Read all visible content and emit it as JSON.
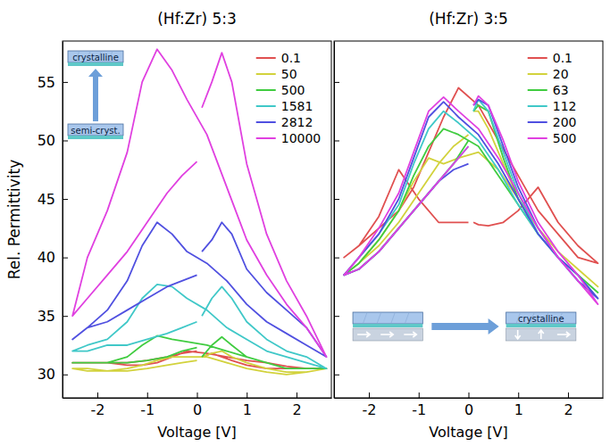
{
  "chart_data": [
    {
      "type": "line",
      "title": "(Hf:Zr) 5:3",
      "x_label": "Voltage [V]",
      "y_label": "Rel. Permittivity",
      "xlim": [
        -2.7,
        2.7
      ],
      "xticks": [
        -2,
        -1,
        0,
        1,
        2
      ],
      "ylim": [
        28,
        58.5
      ],
      "yticks": [
        30,
        35,
        40,
        45,
        50,
        55
      ],
      "legend": "upper right",
      "annotations": [
        "crystalline",
        "semi-cryst."
      ],
      "x": [
        0.1,
        0.3,
        0.5,
        0.7,
        1.0,
        1.4,
        1.8,
        2.2,
        2.6,
        2.2,
        1.8,
        1.4,
        1.0,
        0.6,
        0.2,
        -0.2,
        -0.5,
        -0.8,
        -1.1,
        -1.4,
        -1.8,
        -2.2,
        -2.5,
        -2.2,
        -1.8,
        -1.4,
        -1.0,
        -0.6,
        -0.3,
        0
      ],
      "series": [
        {
          "name": "0.1",
          "color": "#e05050",
          "values": [
            31.5,
            31.8,
            31.5,
            31.2,
            30.8,
            30.5,
            30.5,
            30.5,
            30.5,
            30.5,
            30.7,
            31.0,
            31.2,
            31.5,
            31.8,
            32.0,
            31.5,
            31.0,
            30.8,
            30.8,
            31.0,
            31.0,
            31.0,
            31.0,
            31.0,
            31.0,
            31.2,
            31.5,
            31.8,
            32.0
          ]
        },
        {
          "name": "50",
          "color": "#d2d23c",
          "values": [
            31.5,
            31.8,
            32.0,
            31.5,
            31.0,
            30.5,
            30.2,
            30.2,
            30.5,
            30.2,
            30.0,
            30.2,
            30.5,
            31.0,
            31.5,
            31.5,
            31.5,
            31.2,
            30.8,
            30.5,
            30.3,
            30.5,
            30.5,
            30.3,
            30.3,
            30.3,
            30.5,
            30.8,
            31.0,
            31.2
          ]
        },
        {
          "name": "500",
          "color": "#40cc40",
          "values": [
            31.5,
            32.5,
            33.2,
            32.5,
            31.5,
            31.0,
            30.5,
            30.5,
            30.5,
            30.5,
            30.5,
            31.0,
            31.5,
            32.0,
            32.5,
            32.8,
            33.0,
            33.3,
            32.5,
            31.5,
            31.0,
            31.0,
            31.0,
            31.0,
            31.0,
            31.0,
            31.2,
            31.5,
            32.0,
            32.3
          ]
        },
        {
          "name": "1581",
          "color": "#40c8c8",
          "values": [
            35.0,
            36.5,
            37.5,
            36.5,
            34.5,
            33.0,
            32.0,
            31.5,
            30.5,
            31.0,
            31.5,
            32.0,
            33.0,
            34.0,
            35.5,
            36.5,
            37.5,
            37.7,
            36.5,
            34.5,
            33.0,
            32.5,
            32.0,
            32.0,
            32.5,
            32.5,
            33.0,
            33.5,
            34.0,
            34.5
          ]
        },
        {
          "name": "2812",
          "color": "#5050e0",
          "values": [
            40.5,
            41.5,
            43.0,
            42.0,
            39.0,
            37.0,
            35.5,
            34.0,
            31.5,
            32.5,
            33.5,
            34.5,
            36.0,
            38.0,
            39.5,
            40.5,
            42.0,
            43.0,
            41.0,
            38.0,
            35.5,
            34.0,
            33.0,
            34.0,
            34.5,
            35.5,
            36.5,
            37.5,
            38.0,
            38.5
          ]
        },
        {
          "name": "10000",
          "color": "#e040e0",
          "values": [
            52.8,
            55.0,
            57.5,
            55.0,
            48.0,
            42.0,
            38.0,
            35.0,
            31.5,
            34.0,
            36.0,
            38.5,
            41.5,
            46.0,
            50.5,
            53.5,
            56.0,
            57.8,
            55.0,
            49.0,
            44.0,
            40.0,
            35.0,
            36.5,
            38.5,
            40.5,
            43.0,
            45.5,
            47.0,
            48.2
          ]
        }
      ]
    },
    {
      "type": "line",
      "title": "(Hf:Zr) 3:5",
      "x_label": "Voltage [V]",
      "xlim": [
        -2.7,
        2.7
      ],
      "xticks": [
        -2,
        -1,
        0,
        1,
        2
      ],
      "ylim": [
        28,
        58.5
      ],
      "yticks": [
        30,
        35,
        40,
        45,
        50,
        55
      ],
      "tick_labels": "x",
      "legend": "upper right",
      "annotations": [
        "crystalline"
      ],
      "x": [
        0.1,
        0.2,
        0.4,
        0.7,
        1.0,
        1.4,
        1.8,
        2.2,
        2.6,
        2.2,
        1.8,
        1.4,
        1.0,
        0.6,
        0.2,
        -0.2,
        -0.5,
        -0.8,
        -1.1,
        -1.4,
        -1.8,
        -2.2,
        -2.5,
        -2.2,
        -1.8,
        -1.4,
        -1.0,
        -0.6,
        -0.3,
        0
      ],
      "series": [
        {
          "name": "0.1",
          "color": "#e05050",
          "values": [
            43.0,
            42.8,
            42.7,
            43.0,
            44.0,
            46.0,
            43.0,
            41.0,
            39.5,
            40.0,
            42.0,
            44.0,
            47.0,
            50.0,
            53.0,
            54.5,
            52.0,
            49.0,
            46.0,
            44.0,
            42.5,
            41.0,
            40.0,
            41.0,
            43.5,
            47.5,
            45.0,
            43.0,
            43.0,
            43.0
          ]
        },
        {
          "name": "20",
          "color": "#d2d23c",
          "values": [
            52.5,
            52.5,
            51.0,
            48.0,
            45.0,
            42.5,
            40.5,
            39.0,
            37.5,
            39.0,
            40.5,
            42.5,
            45.0,
            47.5,
            49.0,
            48.5,
            48.0,
            48.5,
            46.5,
            44.0,
            41.5,
            39.5,
            38.5,
            39.5,
            41.0,
            43.0,
            45.5,
            48.0,
            49.5,
            50.5
          ]
        },
        {
          "name": "63",
          "color": "#40cc40",
          "values": [
            52.5,
            53.0,
            52.5,
            48.5,
            45.0,
            42.0,
            40.0,
            38.5,
            37.0,
            38.5,
            40.0,
            42.0,
            44.5,
            47.0,
            49.5,
            50.5,
            51.0,
            49.5,
            47.0,
            44.0,
            41.5,
            39.5,
            38.5,
            39.0,
            40.5,
            42.5,
            44.5,
            46.5,
            48.0,
            50.0
          ]
        },
        {
          "name": "112",
          "color": "#40c8c8",
          "values": [
            52.5,
            53.5,
            52.5,
            49.0,
            45.5,
            42.0,
            40.0,
            38.5,
            36.5,
            38.0,
            40.0,
            42.0,
            44.5,
            47.5,
            50.0,
            51.5,
            52.5,
            51.0,
            48.0,
            44.5,
            42.0,
            40.0,
            38.5,
            39.0,
            40.5,
            42.5,
            44.5,
            46.5,
            48.0,
            49.5
          ]
        },
        {
          "name": "200",
          "color": "#5050e0",
          "values": [
            53.0,
            53.5,
            53.0,
            49.5,
            46.0,
            42.5,
            40.0,
            38.5,
            36.5,
            38.0,
            40.0,
            42.0,
            45.0,
            48.0,
            50.5,
            52.0,
            53.3,
            52.0,
            48.5,
            45.0,
            42.0,
            40.0,
            38.5,
            39.0,
            40.5,
            42.5,
            44.5,
            46.5,
            47.5,
            48.0
          ]
        },
        {
          "name": "500",
          "color": "#e040e0",
          "values": [
            53.0,
            53.8,
            53.0,
            50.0,
            46.5,
            43.0,
            40.5,
            38.5,
            36.0,
            38.0,
            40.0,
            42.5,
            45.5,
            48.5,
            51.0,
            52.5,
            53.7,
            52.5,
            49.0,
            45.5,
            42.5,
            40.0,
            38.5,
            39.0,
            40.5,
            42.5,
            44.5,
            46.5,
            48.0,
            49.5
          ]
        }
      ]
    }
  ]
}
